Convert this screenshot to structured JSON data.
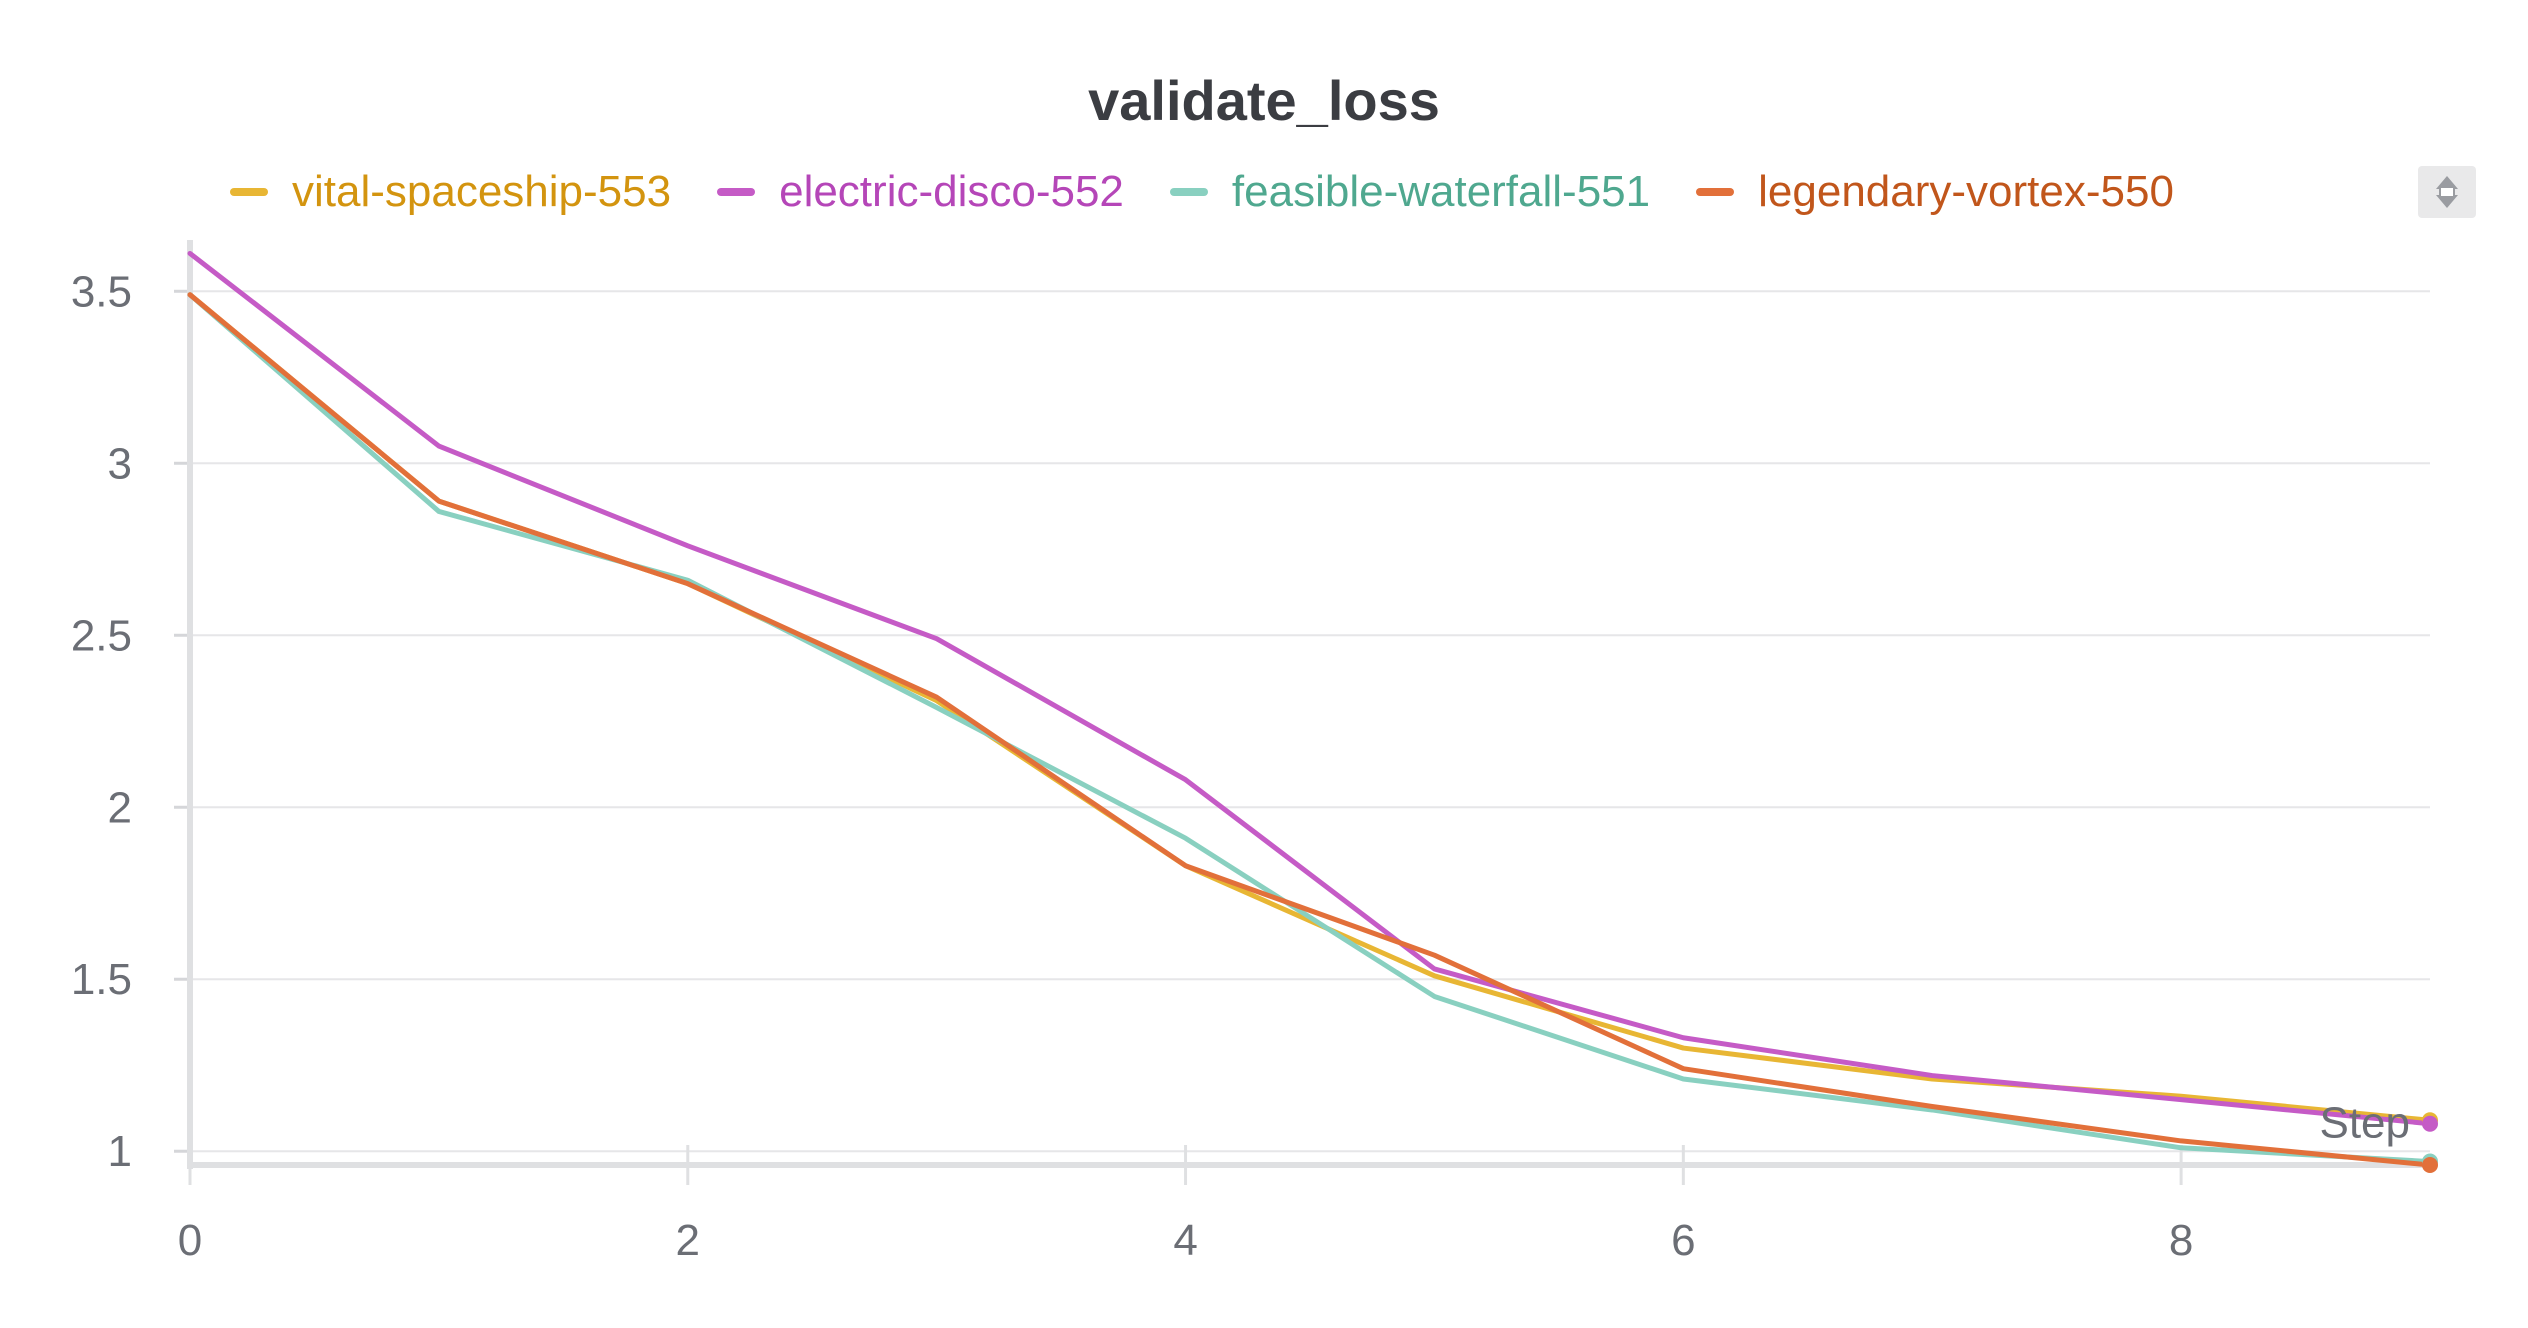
{
  "chart_data": {
    "type": "line",
    "title": "validate_loss",
    "xlabel": "Step",
    "ylabel": "",
    "xlim": [
      0,
      9
    ],
    "ylim": [
      0.96,
      3.62
    ],
    "x_ticks": [
      0,
      2,
      4,
      6,
      8
    ],
    "y_ticks": [
      1,
      1.5,
      2,
      2.5,
      3,
      3.5
    ],
    "y_tick_labels": [
      "1",
      "1.5",
      "2",
      "2.5",
      "3",
      "3.5"
    ],
    "grid": true,
    "legend_placement": "top",
    "x": [
      0,
      1,
      2,
      3,
      4,
      5,
      6,
      7,
      8,
      9
    ],
    "series": [
      {
        "name": "vital-spaceship-553",
        "color": "#e8b634",
        "text_color": "#d3940f",
        "values": [
          3.49,
          2.89,
          2.65,
          2.31,
          1.83,
          1.51,
          1.3,
          1.21,
          1.16,
          1.09
        ]
      },
      {
        "name": "electric-disco-552",
        "color": "#c55bc6",
        "text_color": "#b546b8",
        "values": [
          3.61,
          3.05,
          2.76,
          2.49,
          2.08,
          1.53,
          1.33,
          1.22,
          1.15,
          1.08
        ]
      },
      {
        "name": "feasible-waterfall-551",
        "color": "#89d0c0",
        "text_color": "#4fa88f",
        "values": [
          3.49,
          2.86,
          2.66,
          2.29,
          1.91,
          1.45,
          1.21,
          1.12,
          1.01,
          0.97
        ]
      },
      {
        "name": "legendary-vortex-550",
        "color": "#e2703a",
        "text_color": "#c1561b",
        "values": [
          3.49,
          2.89,
          2.65,
          2.32,
          1.83,
          1.57,
          1.24,
          1.13,
          1.03,
          0.96
        ]
      }
    ]
  },
  "corner_button": {
    "icon": "expand-collapse-icon"
  }
}
